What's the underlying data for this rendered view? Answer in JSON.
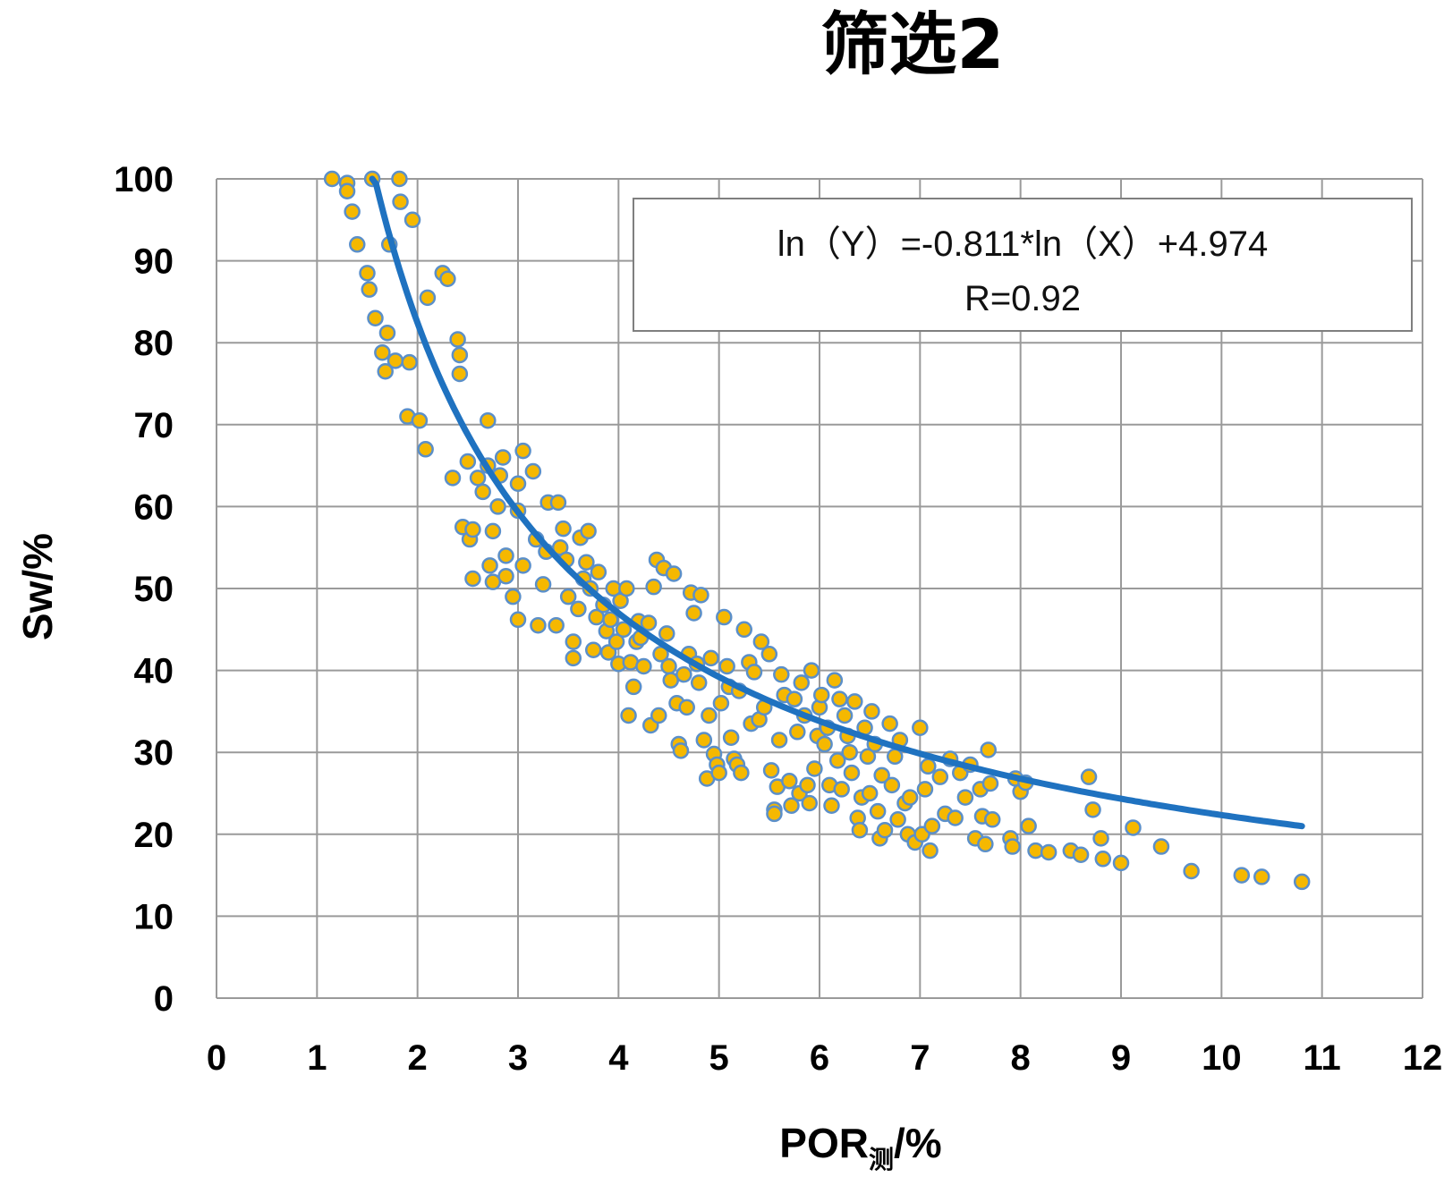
{
  "chart_data": {
    "type": "scatter",
    "title": "筛选2",
    "xlabel_main": "POR",
    "xlabel_sub": "测",
    "xlabel_tail": "/%",
    "ylabel": "Sw/%",
    "xlim": [
      0,
      12
    ],
    "ylim": [
      0,
      100
    ],
    "x_ticks": [
      0,
      1,
      2,
      3,
      4,
      5,
      6,
      7,
      8,
      9,
      10,
      11,
      12
    ],
    "y_ticks": [
      0,
      10,
      20,
      30,
      40,
      50,
      60,
      70,
      80,
      90,
      100
    ],
    "grid": true,
    "marker_fill": "#F5B800",
    "marker_edge": "#5B8FC9",
    "trend_color": "#1F72C0",
    "trend": {
      "type": "power",
      "coef_ln": -0.811,
      "intercept_ln": 4.974,
      "x_range": [
        1.55,
        10.8
      ]
    },
    "annotation": {
      "line1": "ln（Y）=-0.811*ln（X）+4.974",
      "line2": "R=0.92",
      "position": "top-right"
    },
    "points": [
      [
        1.15,
        100
      ],
      [
        1.3,
        99.5
      ],
      [
        1.3,
        98.5
      ],
      [
        1.35,
        96
      ],
      [
        1.4,
        92
      ],
      [
        1.5,
        88.5
      ],
      [
        1.52,
        86.5
      ],
      [
        1.55,
        100
      ],
      [
        1.58,
        83
      ],
      [
        1.65,
        78.8
      ],
      [
        1.68,
        76.5
      ],
      [
        1.7,
        81.2
      ],
      [
        1.72,
        92
      ],
      [
        1.78,
        77.8
      ],
      [
        1.82,
        100
      ],
      [
        1.83,
        97.2
      ],
      [
        1.9,
        71
      ],
      [
        1.92,
        77.6
      ],
      [
        1.95,
        95
      ],
      [
        2.02,
        70.5
      ],
      [
        2.08,
        67
      ],
      [
        2.1,
        85.5
      ],
      [
        2.25,
        88.5
      ],
      [
        2.3,
        87.8
      ],
      [
        2.35,
        63.5
      ],
      [
        2.4,
        80.4
      ],
      [
        2.42,
        78.5
      ],
      [
        2.42,
        76.2
      ],
      [
        2.45,
        57.5
      ],
      [
        2.5,
        65.5
      ],
      [
        2.52,
        56
      ],
      [
        2.55,
        57.2
      ],
      [
        2.55,
        51.2
      ],
      [
        2.6,
        63.5
      ],
      [
        2.65,
        61.8
      ],
      [
        2.7,
        70.5
      ],
      [
        2.7,
        65
      ],
      [
        2.72,
        52.8
      ],
      [
        2.75,
        57
      ],
      [
        2.75,
        50.8
      ],
      [
        2.8,
        60
      ],
      [
        2.82,
        63.8
      ],
      [
        2.85,
        66
      ],
      [
        2.88,
        54
      ],
      [
        2.88,
        51.5
      ],
      [
        2.95,
        49
      ],
      [
        3.0,
        62.8
      ],
      [
        3.0,
        59.5
      ],
      [
        3.0,
        46.2
      ],
      [
        3.05,
        66.8
      ],
      [
        3.05,
        52.8
      ],
      [
        3.15,
        64.3
      ],
      [
        3.18,
        56
      ],
      [
        3.2,
        45.5
      ],
      [
        3.25,
        50.5
      ],
      [
        3.28,
        54.5
      ],
      [
        3.3,
        60.5
      ],
      [
        3.38,
        45.5
      ],
      [
        3.4,
        60.5
      ],
      [
        3.42,
        55
      ],
      [
        3.45,
        57.3
      ],
      [
        3.48,
        53.5
      ],
      [
        3.5,
        49
      ],
      [
        3.55,
        43.5
      ],
      [
        3.55,
        41.5
      ],
      [
        3.6,
        47.5
      ],
      [
        3.62,
        56.2
      ],
      [
        3.65,
        51.2
      ],
      [
        3.68,
        53.2
      ],
      [
        3.7,
        57
      ],
      [
        3.72,
        50
      ],
      [
        3.75,
        42.5
      ],
      [
        3.78,
        46.5
      ],
      [
        3.8,
        52
      ],
      [
        3.85,
        48
      ],
      [
        3.88,
        44.8
      ],
      [
        3.9,
        42.2
      ],
      [
        3.92,
        46.2
      ],
      [
        3.95,
        50
      ],
      [
        3.98,
        43.5
      ],
      [
        4.0,
        40.8
      ],
      [
        4.02,
        48.5
      ],
      [
        4.05,
        45
      ],
      [
        4.08,
        50
      ],
      [
        4.1,
        34.5
      ],
      [
        4.12,
        41
      ],
      [
        4.15,
        38
      ],
      [
        4.18,
        43.5
      ],
      [
        4.2,
        46
      ],
      [
        4.22,
        44
      ],
      [
        4.25,
        40.5
      ],
      [
        4.3,
        45.8
      ],
      [
        4.32,
        33.3
      ],
      [
        4.35,
        50.2
      ],
      [
        4.38,
        53.5
      ],
      [
        4.4,
        34.5
      ],
      [
        4.42,
        42
      ],
      [
        4.45,
        52.5
      ],
      [
        4.48,
        44.5
      ],
      [
        4.5,
        40.5
      ],
      [
        4.52,
        38.8
      ],
      [
        4.55,
        51.8
      ],
      [
        4.58,
        36
      ],
      [
        4.6,
        31
      ],
      [
        4.62,
        30.2
      ],
      [
        4.65,
        39.5
      ],
      [
        4.68,
        35.5
      ],
      [
        4.7,
        42
      ],
      [
        4.72,
        49.5
      ],
      [
        4.75,
        47
      ],
      [
        4.78,
        40.8
      ],
      [
        4.8,
        38.5
      ],
      [
        4.82,
        49.2
      ],
      [
        4.85,
        31.5
      ],
      [
        4.88,
        26.8
      ],
      [
        4.9,
        34.5
      ],
      [
        4.92,
        41.5
      ],
      [
        4.95,
        29.8
      ],
      [
        4.98,
        28.5
      ],
      [
        5.0,
        27.5
      ],
      [
        5.02,
        36
      ],
      [
        5.05,
        46.5
      ],
      [
        5.08,
        40.5
      ],
      [
        5.1,
        38
      ],
      [
        5.12,
        31.8
      ],
      [
        5.15,
        29.2
      ],
      [
        5.18,
        28.5
      ],
      [
        5.2,
        37.5
      ],
      [
        5.22,
        27.5
      ],
      [
        5.25,
        45
      ],
      [
        5.3,
        41
      ],
      [
        5.32,
        33.5
      ],
      [
        5.35,
        39.8
      ],
      [
        5.4,
        34
      ],
      [
        5.42,
        43.5
      ],
      [
        5.45,
        35.5
      ],
      [
        5.5,
        42
      ],
      [
        5.52,
        27.8
      ],
      [
        5.55,
        23
      ],
      [
        5.55,
        22.5
      ],
      [
        5.58,
        25.8
      ],
      [
        5.6,
        31.5
      ],
      [
        5.62,
        39.5
      ],
      [
        5.65,
        37
      ],
      [
        5.7,
        26.5
      ],
      [
        5.72,
        23.5
      ],
      [
        5.75,
        36.5
      ],
      [
        5.78,
        32.5
      ],
      [
        5.8,
        25
      ],
      [
        5.82,
        38.5
      ],
      [
        5.85,
        34.5
      ],
      [
        5.88,
        26
      ],
      [
        5.9,
        23.8
      ],
      [
        5.92,
        40
      ],
      [
        5.95,
        28
      ],
      [
        5.98,
        32
      ],
      [
        6.0,
        35.5
      ],
      [
        6.02,
        37
      ],
      [
        6.05,
        31
      ],
      [
        6.08,
        33
      ],
      [
        6.1,
        26
      ],
      [
        6.12,
        23.5
      ],
      [
        6.15,
        38.8
      ],
      [
        6.18,
        29
      ],
      [
        6.2,
        36.5
      ],
      [
        6.22,
        25.5
      ],
      [
        6.25,
        34.5
      ],
      [
        6.28,
        32
      ],
      [
        6.3,
        30
      ],
      [
        6.32,
        27.5
      ],
      [
        6.35,
        36.2
      ],
      [
        6.38,
        22
      ],
      [
        6.4,
        20.5
      ],
      [
        6.42,
        24.5
      ],
      [
        6.45,
        33
      ],
      [
        6.48,
        29.5
      ],
      [
        6.5,
        25
      ],
      [
        6.52,
        35
      ],
      [
        6.55,
        31
      ],
      [
        6.58,
        22.8
      ],
      [
        6.6,
        19.5
      ],
      [
        6.62,
        27.2
      ],
      [
        6.65,
        20.5
      ],
      [
        6.7,
        33.5
      ],
      [
        6.72,
        26
      ],
      [
        6.75,
        29.5
      ],
      [
        6.78,
        21.8
      ],
      [
        6.8,
        31.5
      ],
      [
        6.85,
        23.8
      ],
      [
        6.88,
        20
      ],
      [
        6.9,
        24.5
      ],
      [
        6.95,
        19
      ],
      [
        7.0,
        33
      ],
      [
        7.02,
        20
      ],
      [
        7.05,
        25.5
      ],
      [
        7.08,
        28.3
      ],
      [
        7.1,
        18
      ],
      [
        7.12,
        21
      ],
      [
        7.2,
        27
      ],
      [
        7.25,
        22.5
      ],
      [
        7.3,
        29.2
      ],
      [
        7.35,
        22
      ],
      [
        7.4,
        27.5
      ],
      [
        7.45,
        24.5
      ],
      [
        7.5,
        28.5
      ],
      [
        7.55,
        19.5
      ],
      [
        7.6,
        25.5
      ],
      [
        7.62,
        22.2
      ],
      [
        7.65,
        18.8
      ],
      [
        7.68,
        30.3
      ],
      [
        7.7,
        26.2
      ],
      [
        7.72,
        21.8
      ],
      [
        7.9,
        19.5
      ],
      [
        7.92,
        18.5
      ],
      [
        7.95,
        26.8
      ],
      [
        8.0,
        25.2
      ],
      [
        8.05,
        26.3
      ],
      [
        8.08,
        21
      ],
      [
        8.15,
        18
      ],
      [
        8.28,
        17.8
      ],
      [
        8.5,
        18
      ],
      [
        8.6,
        17.5
      ],
      [
        8.68,
        27
      ],
      [
        8.72,
        23
      ],
      [
        8.8,
        19.5
      ],
      [
        8.82,
        17
      ],
      [
        9.0,
        16.5
      ],
      [
        9.12,
        20.8
      ],
      [
        9.4,
        18.5
      ],
      [
        9.7,
        15.5
      ],
      [
        10.2,
        15
      ],
      [
        10.4,
        14.8
      ],
      [
        10.8,
        14.2
      ]
    ]
  }
}
